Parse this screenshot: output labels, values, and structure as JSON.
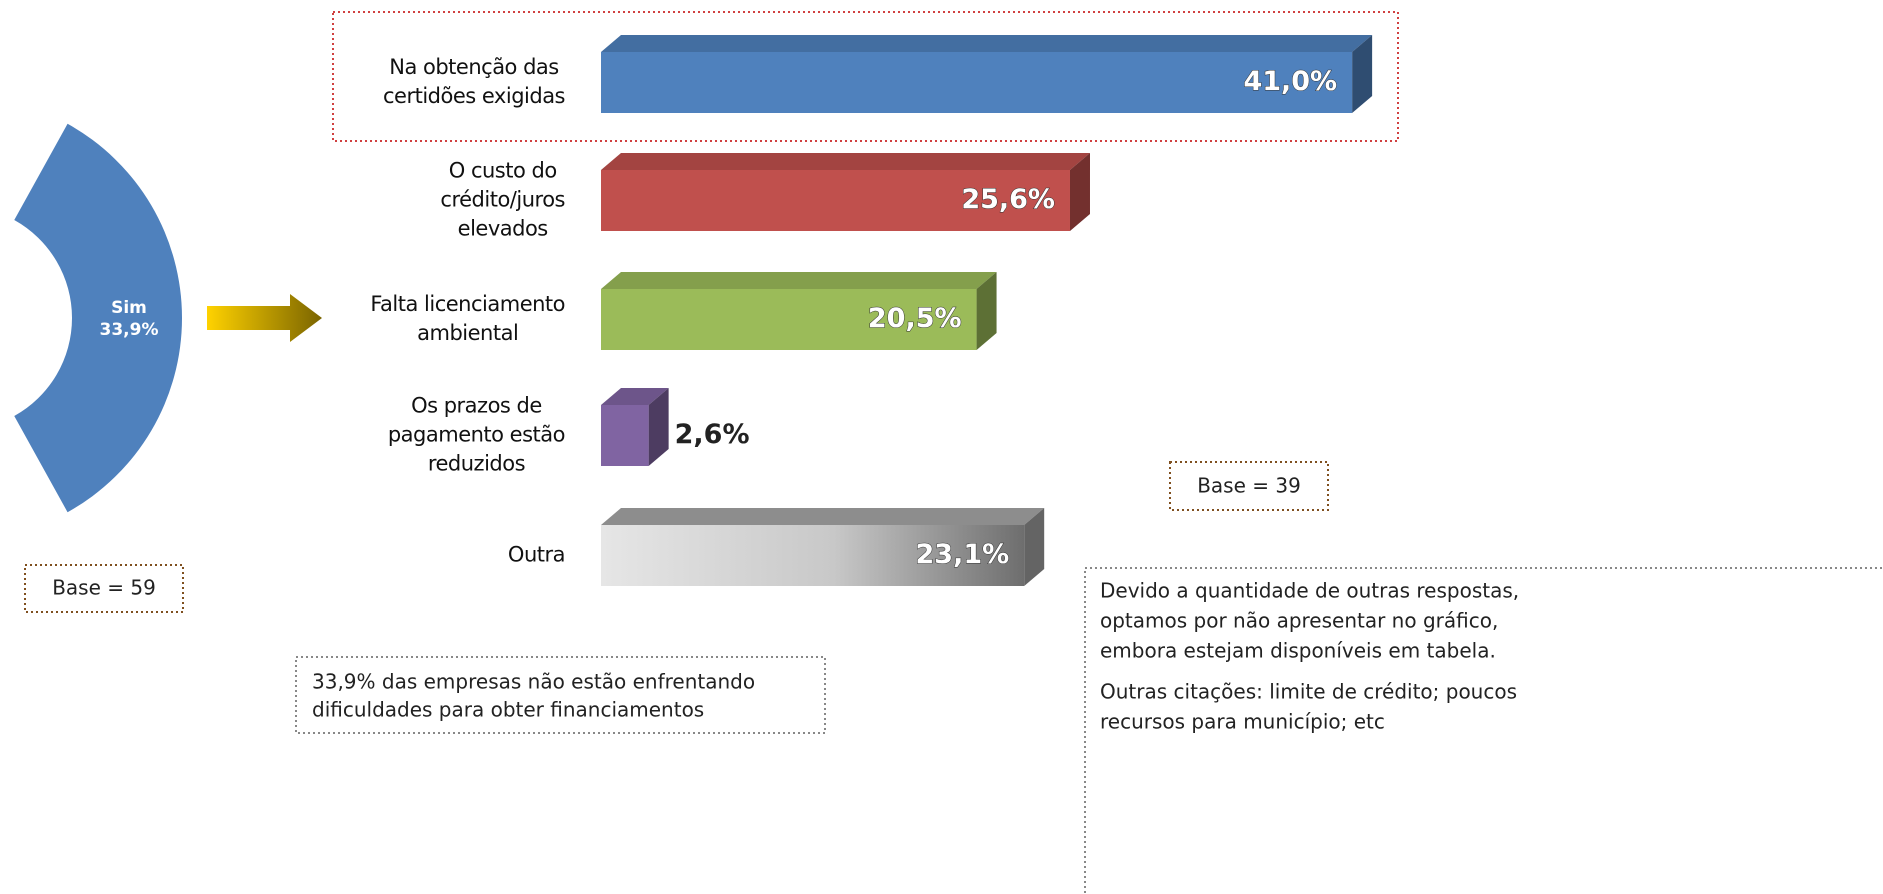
{
  "chart_data": [
    {
      "type": "bar3d",
      "categories": [
        [
          "Na obtenção das",
          "certidões exigidas"
        ],
        [
          "O custo do",
          "crédito/juros",
          "elevados"
        ],
        [
          "Falta licenciamento",
          "ambiental"
        ],
        [
          "Os prazos de",
          "pagamento estão",
          "reduzidos"
        ],
        [
          "Outra"
        ]
      ],
      "values": [
        41.0,
        25.6,
        20.5,
        2.6,
        23.1
      ],
      "value_labels": [
        "41,0%",
        "25,6%",
        "20,5%",
        "2,6%",
        "23,1%"
      ],
      "colors": [
        "#4f81bd",
        "#c0504d",
        "#9bbb59",
        "#8064a2",
        "#a6a6a6"
      ],
      "annotations": {
        "base": "Base = 39",
        "note": [
          "Devido a quantidade de outras respostas,",
          "optamos por não apresentar no gráfico,",
          "embora estejam disponíveis em tabela."
        ],
        "other": [
          "Outras citações: limite de crédito; poucos",
          "recursos para município; etc"
        ]
      }
    },
    {
      "type": "pie",
      "categories": [
        "Sim"
      ],
      "values": [
        33.9
      ],
      "value_labels": [
        "33,9%"
      ],
      "colors": [
        "#4f81bd"
      ],
      "annotations": {
        "base": "Base = 59",
        "note": [
          "33,9% das empresas não estão enfrentando",
          "dificuldades para obter financiamentos"
        ]
      }
    }
  ]
}
